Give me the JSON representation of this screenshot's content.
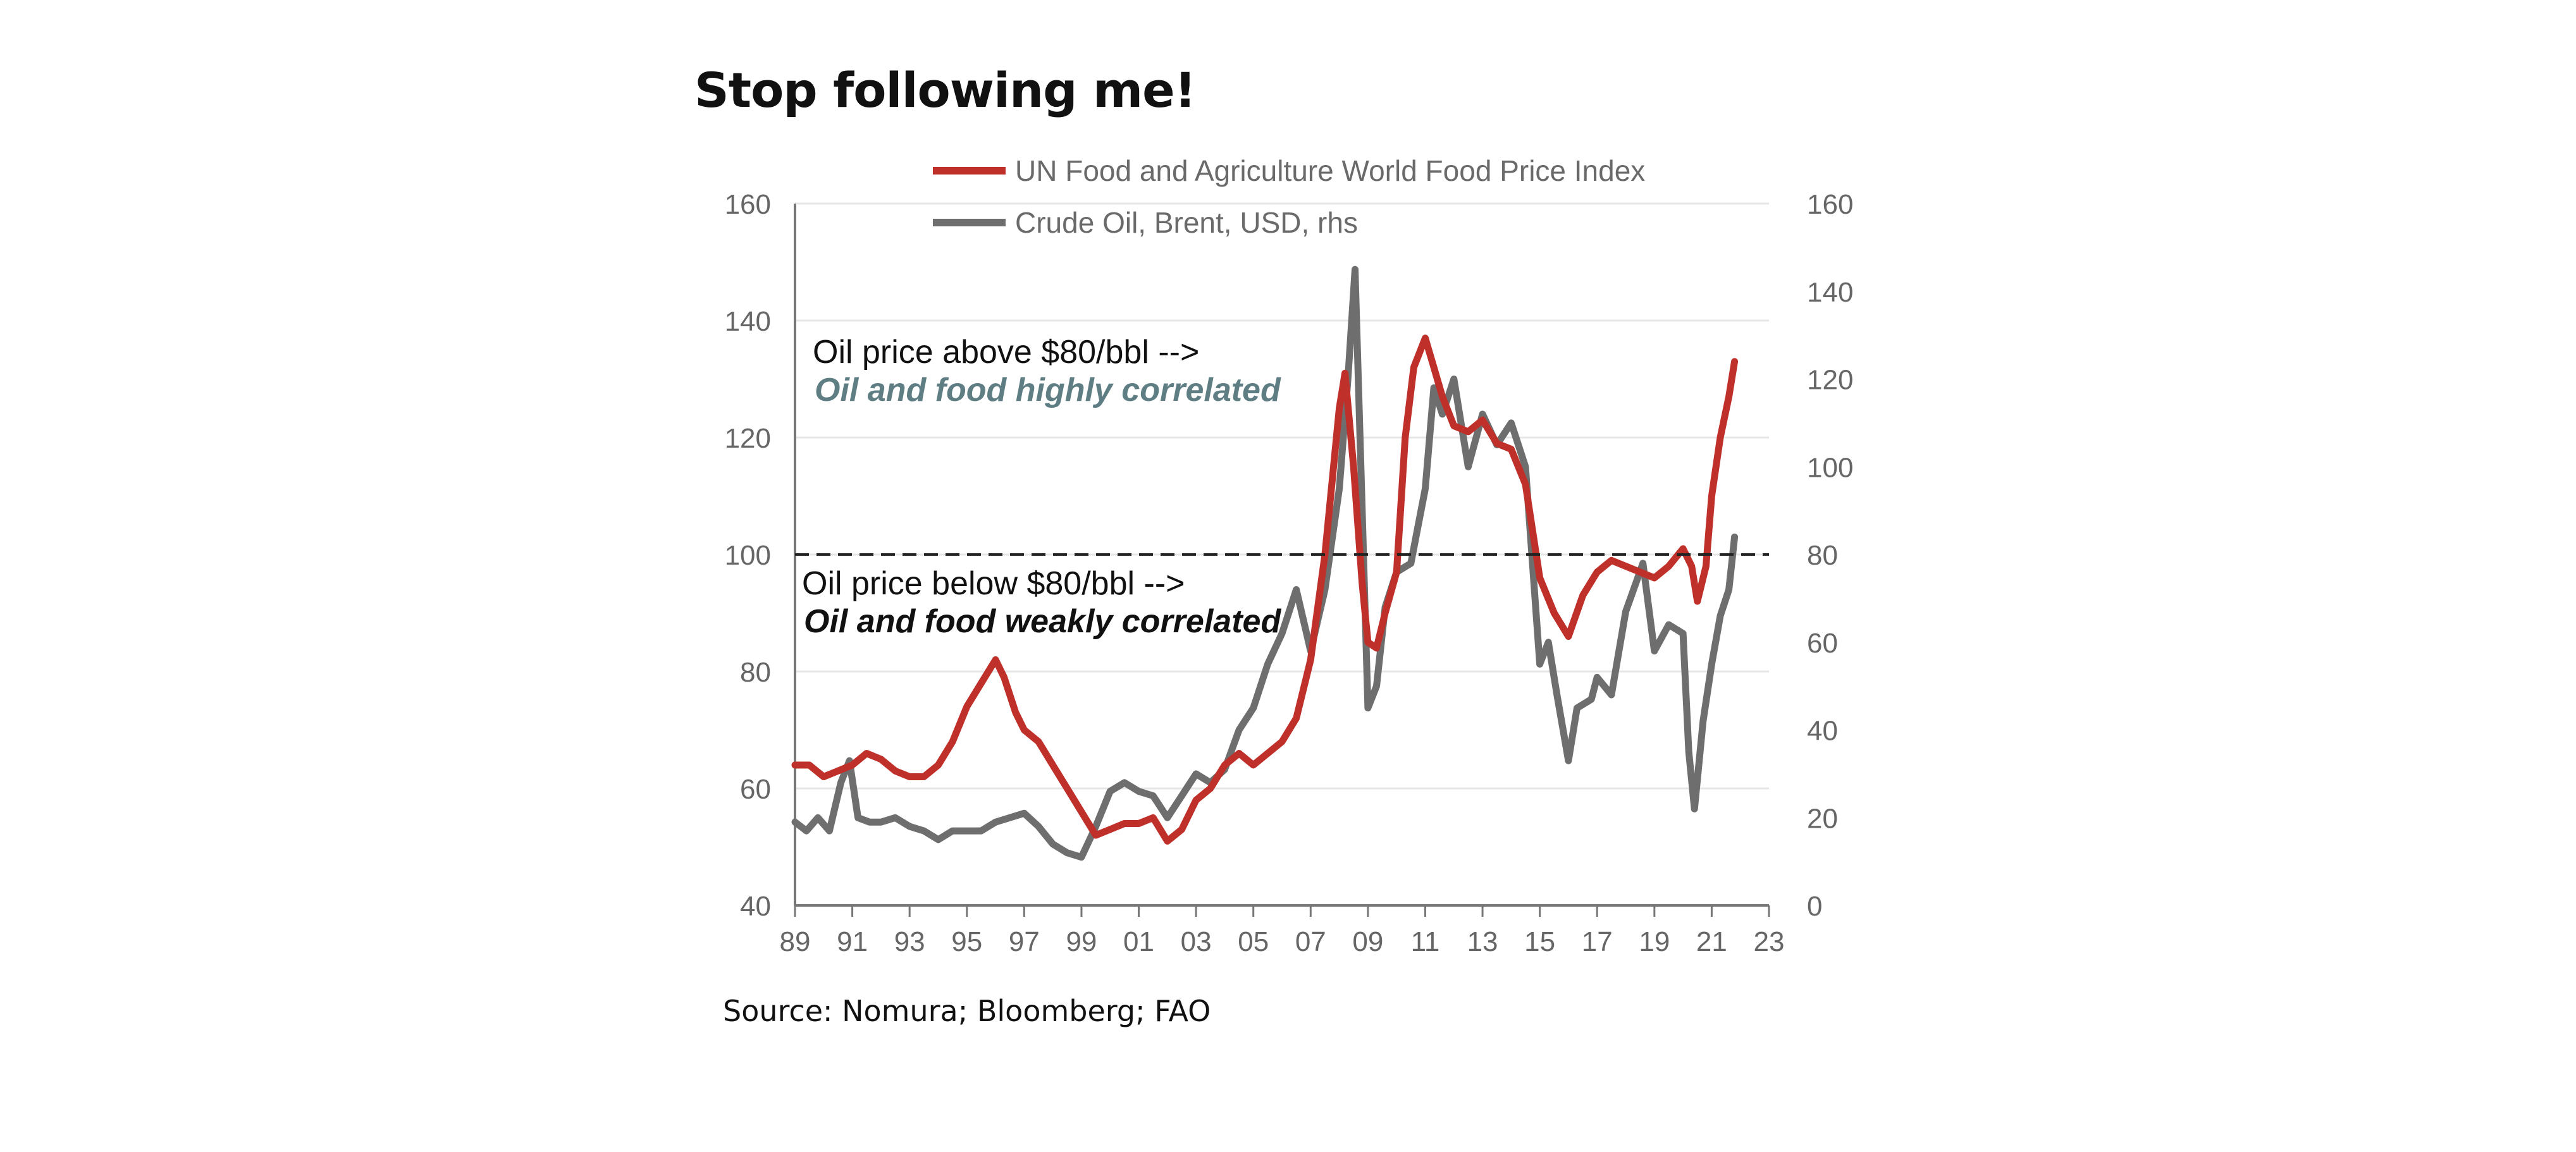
{
  "title": "Stop following me!",
  "source": "Source: Nomura; Bloomberg; FAO",
  "chart_data": {
    "type": "line",
    "title": "",
    "x_tick_labels": [
      "89",
      "91",
      "93",
      "95",
      "97",
      "99",
      "01",
      "03",
      "05",
      "07",
      "09",
      "11",
      "13",
      "15",
      "17",
      "19",
      "21",
      "23"
    ],
    "x_range": [
      1989,
      2023
    ],
    "y_left": {
      "ticks": [
        "160",
        "140",
        "120",
        "100",
        "80",
        "60",
        "40"
      ],
      "range": [
        40,
        160
      ]
    },
    "y_right": {
      "ticks": [
        "160",
        "140",
        "120",
        "100",
        "80",
        "60",
        "40",
        "20",
        "0"
      ],
      "range": [
        0,
        160
      ]
    },
    "legend": [
      {
        "name": "UN Food and Agriculture World Food Price Index",
        "color": "#c0302a"
      },
      {
        "name": "Crude Oil, Brent, USD, rhs",
        "color": "#6e6e6e"
      }
    ],
    "reference_line": {
      "axis": "left",
      "value": 100,
      "style": "dashed"
    },
    "annotations": {
      "above_line1": "Oil price above $80/bbl -->",
      "above_line2": "Oil and food highly correlated",
      "below_line1": "Oil price below $80/bbl -->",
      "below_line2": "Oil and food weakly correlated"
    },
    "series": [
      {
        "name": "UN Food and Agriculture World Food Price Index",
        "axis": "left",
        "color": "#c0302a",
        "points": [
          [
            1989.0,
            64
          ],
          [
            1989.5,
            64
          ],
          [
            1990.0,
            62
          ],
          [
            1990.5,
            63
          ],
          [
            1991.0,
            64
          ],
          [
            1991.5,
            66
          ],
          [
            1992.0,
            65
          ],
          [
            1992.5,
            63
          ],
          [
            1993.0,
            62
          ],
          [
            1993.5,
            62
          ],
          [
            1994.0,
            64
          ],
          [
            1994.5,
            68
          ],
          [
            1995.0,
            74
          ],
          [
            1995.5,
            78
          ],
          [
            1996.0,
            82
          ],
          [
            1996.3,
            79
          ],
          [
            1996.7,
            73
          ],
          [
            1997.0,
            70
          ],
          [
            1997.5,
            68
          ],
          [
            1998.0,
            64
          ],
          [
            1998.5,
            60
          ],
          [
            1999.0,
            56
          ],
          [
            1999.5,
            52
          ],
          [
            2000.0,
            53
          ],
          [
            2000.5,
            54
          ],
          [
            2001.0,
            54
          ],
          [
            2001.5,
            55
          ],
          [
            2002.0,
            51
          ],
          [
            2002.5,
            53
          ],
          [
            2003.0,
            58
          ],
          [
            2003.5,
            60
          ],
          [
            2004.0,
            64
          ],
          [
            2004.5,
            66
          ],
          [
            2005.0,
            64
          ],
          [
            2005.5,
            66
          ],
          [
            2006.0,
            68
          ],
          [
            2006.5,
            72
          ],
          [
            2007.0,
            82
          ],
          [
            2007.5,
            100
          ],
          [
            2008.0,
            125
          ],
          [
            2008.2,
            131
          ],
          [
            2008.5,
            115
          ],
          [
            2008.8,
            95
          ],
          [
            2009.0,
            85
          ],
          [
            2009.3,
            84
          ],
          [
            2009.6,
            90
          ],
          [
            2010.0,
            97
          ],
          [
            2010.3,
            120
          ],
          [
            2010.6,
            132
          ],
          [
            2011.0,
            137
          ],
          [
            2011.3,
            132
          ],
          [
            2011.6,
            127
          ],
          [
            2012.0,
            122
          ],
          [
            2012.5,
            121
          ],
          [
            2013.0,
            123
          ],
          [
            2013.5,
            119
          ],
          [
            2014.0,
            118
          ],
          [
            2014.5,
            112
          ],
          [
            2015.0,
            96
          ],
          [
            2015.5,
            90
          ],
          [
            2016.0,
            86
          ],
          [
            2016.5,
            93
          ],
          [
            2017.0,
            97
          ],
          [
            2017.5,
            99
          ],
          [
            2018.0,
            98
          ],
          [
            2018.5,
            97
          ],
          [
            2019.0,
            96
          ],
          [
            2019.5,
            98
          ],
          [
            2020.0,
            101
          ],
          [
            2020.3,
            98
          ],
          [
            2020.5,
            92
          ],
          [
            2020.8,
            98
          ],
          [
            2021.0,
            110
          ],
          [
            2021.3,
            120
          ],
          [
            2021.6,
            127
          ],
          [
            2021.8,
            133
          ]
        ]
      },
      {
        "name": "Crude Oil, Brent, USD, rhs",
        "axis": "right",
        "color": "#6e6e6e",
        "points": [
          [
            1989.0,
            19
          ],
          [
            1989.4,
            17
          ],
          [
            1989.8,
            20
          ],
          [
            1990.2,
            17
          ],
          [
            1990.6,
            28
          ],
          [
            1990.9,
            33
          ],
          [
            1991.2,
            20
          ],
          [
            1991.6,
            19
          ],
          [
            1992.0,
            19
          ],
          [
            1992.5,
            20
          ],
          [
            1993.0,
            18
          ],
          [
            1993.5,
            17
          ],
          [
            1994.0,
            15
          ],
          [
            1994.5,
            17
          ],
          [
            1995.0,
            17
          ],
          [
            1995.5,
            17
          ],
          [
            1996.0,
            19
          ],
          [
            1996.5,
            20
          ],
          [
            1997.0,
            21
          ],
          [
            1997.5,
            18
          ],
          [
            1998.0,
            14
          ],
          [
            1998.5,
            12
          ],
          [
            1999.0,
            11
          ],
          [
            1999.5,
            18
          ],
          [
            2000.0,
            26
          ],
          [
            2000.5,
            28
          ],
          [
            2001.0,
            26
          ],
          [
            2001.5,
            25
          ],
          [
            2002.0,
            20
          ],
          [
            2002.5,
            25
          ],
          [
            2003.0,
            30
          ],
          [
            2003.5,
            28
          ],
          [
            2004.0,
            31
          ],
          [
            2004.5,
            40
          ],
          [
            2005.0,
            45
          ],
          [
            2005.5,
            55
          ],
          [
            2006.0,
            62
          ],
          [
            2006.5,
            72
          ],
          [
            2007.0,
            58
          ],
          [
            2007.5,
            72
          ],
          [
            2008.0,
            95
          ],
          [
            2008.3,
            120
          ],
          [
            2008.55,
            145
          ],
          [
            2008.8,
            90
          ],
          [
            2009.0,
            45
          ],
          [
            2009.3,
            50
          ],
          [
            2009.6,
            68
          ],
          [
            2010.0,
            76
          ],
          [
            2010.5,
            78
          ],
          [
            2011.0,
            95
          ],
          [
            2011.3,
            118
          ],
          [
            2011.6,
            112
          ],
          [
            2012.0,
            120
          ],
          [
            2012.5,
            100
          ],
          [
            2013.0,
            112
          ],
          [
            2013.5,
            105
          ],
          [
            2014.0,
            110
          ],
          [
            2014.5,
            100
          ],
          [
            2015.0,
            55
          ],
          [
            2015.3,
            60
          ],
          [
            2015.6,
            48
          ],
          [
            2016.0,
            33
          ],
          [
            2016.3,
            45
          ],
          [
            2016.8,
            47
          ],
          [
            2017.0,
            52
          ],
          [
            2017.5,
            48
          ],
          [
            2018.0,
            67
          ],
          [
            2018.6,
            78
          ],
          [
            2019.0,
            58
          ],
          [
            2019.5,
            64
          ],
          [
            2020.0,
            62
          ],
          [
            2020.2,
            35
          ],
          [
            2020.4,
            22
          ],
          [
            2020.7,
            42
          ],
          [
            2021.0,
            55
          ],
          [
            2021.3,
            66
          ],
          [
            2021.6,
            72
          ],
          [
            2021.8,
            84
          ]
        ]
      }
    ]
  }
}
